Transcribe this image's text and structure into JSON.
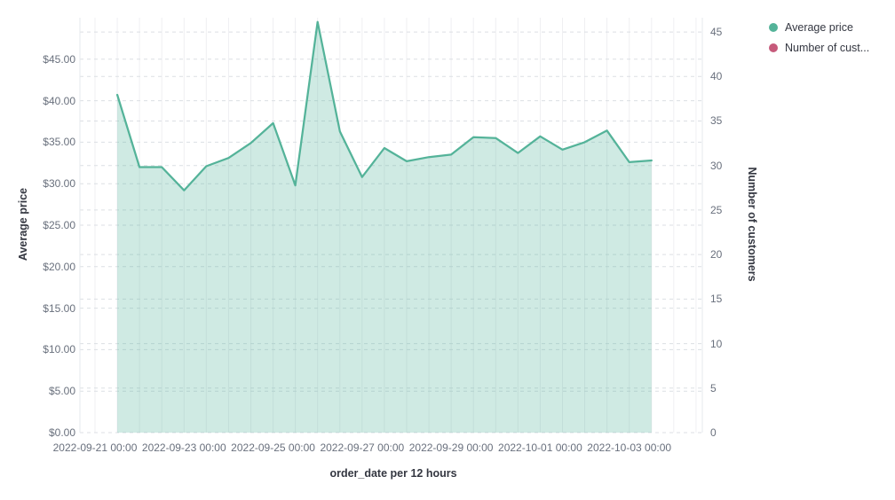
{
  "legend": {
    "position": "top-right",
    "items": [
      {
        "label": "Average price",
        "color": "#54B399"
      },
      {
        "label": "Number of cust...",
        "color": "#C65A7B"
      }
    ]
  },
  "axes": {
    "left": {
      "title": "Average price",
      "ticks": [
        {
          "label": "$0.00",
          "value": 0
        },
        {
          "label": "$5.00",
          "value": 5
        },
        {
          "label": "$10.00",
          "value": 10
        },
        {
          "label": "$15.00",
          "value": 15
        },
        {
          "label": "$20.00",
          "value": 20
        },
        {
          "label": "$25.00",
          "value": 25
        },
        {
          "label": "$30.00",
          "value": 30
        },
        {
          "label": "$35.00",
          "value": 35
        },
        {
          "label": "$40.00",
          "value": 40
        },
        {
          "label": "$45.00",
          "value": 45
        }
      ]
    },
    "right": {
      "title": "Number of customers",
      "ticks": [
        {
          "label": "0",
          "value": 0
        },
        {
          "label": "5",
          "value": 5
        },
        {
          "label": "10",
          "value": 10
        },
        {
          "label": "15",
          "value": 15
        },
        {
          "label": "20",
          "value": 20
        },
        {
          "label": "25",
          "value": 25
        },
        {
          "label": "30",
          "value": 30
        },
        {
          "label": "35",
          "value": 35
        },
        {
          "label": "40",
          "value": 40
        },
        {
          "label": "45",
          "value": 45
        }
      ]
    },
    "bottom": {
      "title": "order_date per 12 hours",
      "ticks": [
        {
          "label": "2022-09-21 00:00",
          "grid": 0
        },
        {
          "label": "2022-09-23 00:00",
          "grid": 4
        },
        {
          "label": "2022-09-25 00:00",
          "grid": 8
        },
        {
          "label": "2022-09-27 00:00",
          "grid": 12
        },
        {
          "label": "2022-09-29 00:00",
          "grid": 16
        },
        {
          "label": "2022-10-01 00:00",
          "grid": 20
        },
        {
          "label": "2022-10-03 00:00",
          "grid": 24
        }
      ]
    }
  },
  "chart_data": {
    "type": "area",
    "title": "",
    "xlabel": "order_date per 12 hours",
    "ylabel_left": "Average price",
    "ylabel_right": "Number of customers",
    "ylim_left": [
      0,
      50
    ],
    "ylim_right": [
      0,
      46.6
    ],
    "grid": true,
    "legend_position": "top-right",
    "x": [
      "2022-09-21 12:00",
      "2022-09-22 00:00",
      "2022-09-22 12:00",
      "2022-09-23 00:00",
      "2022-09-23 12:00",
      "2022-09-24 00:00",
      "2022-09-24 12:00",
      "2022-09-25 00:00",
      "2022-09-25 12:00",
      "2022-09-26 00:00",
      "2022-09-26 12:00",
      "2022-09-27 00:00",
      "2022-09-27 12:00",
      "2022-09-28 00:00",
      "2022-09-28 12:00",
      "2022-09-29 00:00",
      "2022-09-29 12:00",
      "2022-09-30 00:00",
      "2022-09-30 12:00",
      "2022-10-01 00:00",
      "2022-10-01 12:00",
      "2022-10-02 00:00",
      "2022-10-02 12:00",
      "2022-10-03 00:00",
      "2022-10-03 12:00"
    ],
    "series": [
      {
        "name": "Average price",
        "axis": "left",
        "color": "#54B399",
        "fill_opacity": 0.28,
        "values": [
          40.7,
          32.0,
          32.0,
          29.2,
          32.1,
          33.1,
          34.9,
          37.3,
          29.8,
          49.5,
          36.3,
          30.8,
          34.3,
          32.7,
          33.2,
          33.5,
          35.6,
          35.5,
          33.7,
          35.7,
          34.1,
          35.0,
          36.4,
          32.6,
          32.8
        ]
      },
      {
        "name": "Number of customers",
        "axis": "right",
        "color": "#C65A7B",
        "values": []
      }
    ]
  },
  "style": {
    "v_gridline_color": "#efeff2",
    "h_gridline_color": "#dcdfe4",
    "axis_line_color": "#e6e8ec"
  }
}
